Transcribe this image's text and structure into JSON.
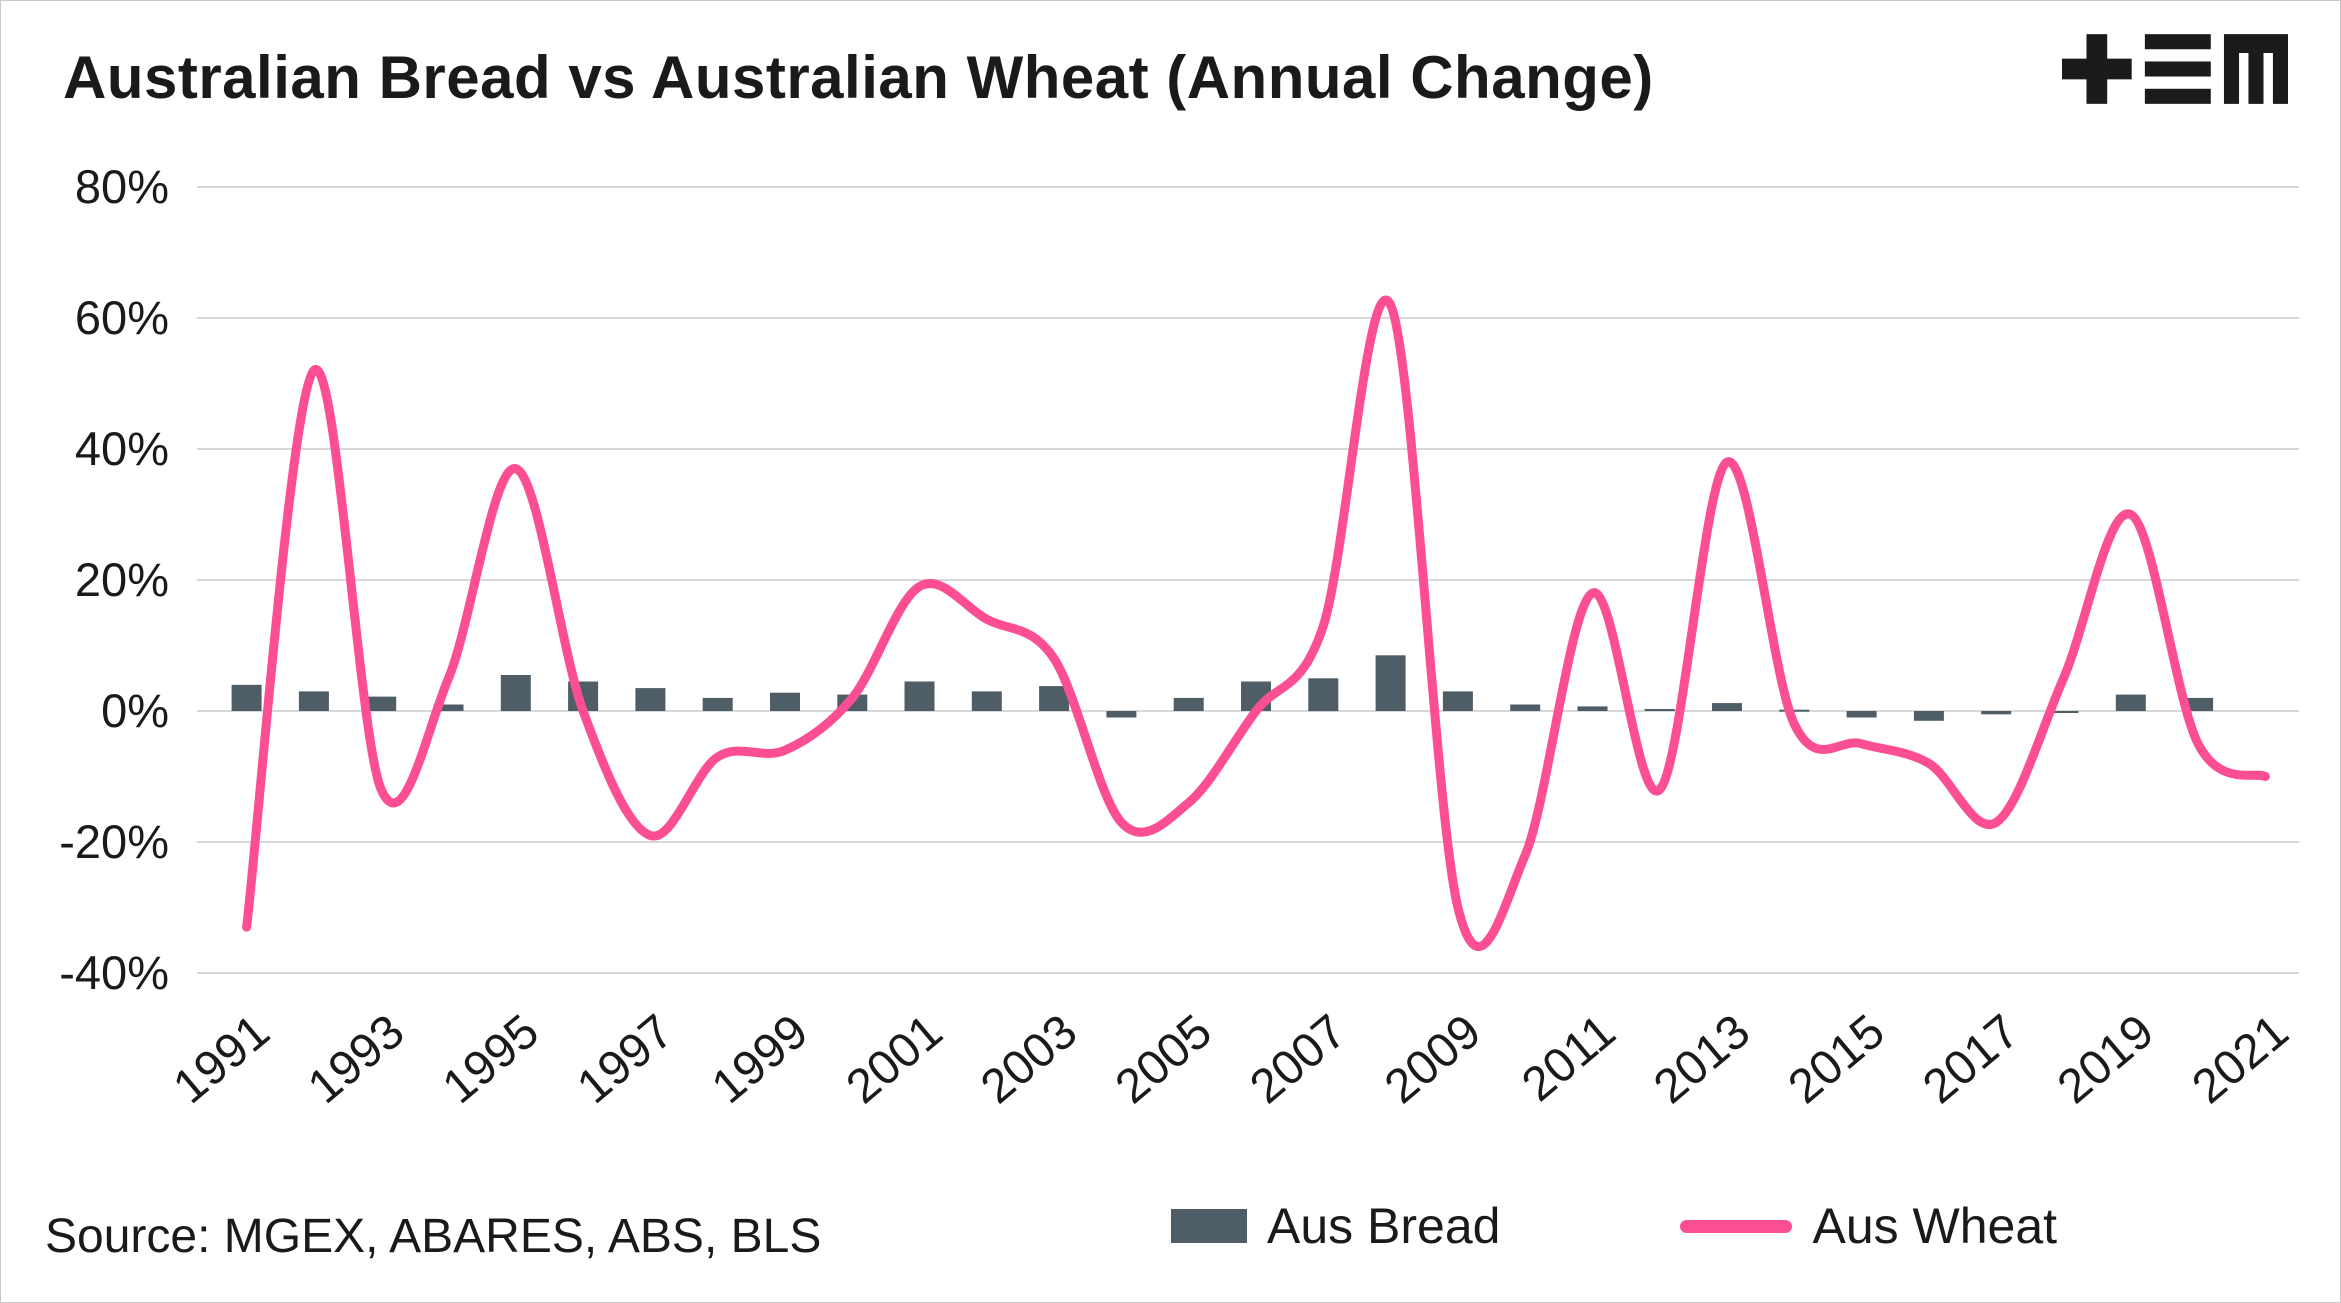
{
  "header": {
    "title": "Australian Bread vs Australian Wheat (Annual Change)",
    "logo_name": "TEM logo"
  },
  "footer": {
    "source": "Source: MGEX, ABARES, ABS, BLS"
  },
  "legend": {
    "bread_label": "Aus Bread",
    "wheat_label": "Aus Wheat"
  },
  "colors": {
    "bread": "#4e5d66",
    "wheat": "#fc4f93",
    "grid": "#d8d8d8",
    "axis_text": "#1a1a1a",
    "logo": "#1b1b1b"
  },
  "chart_data": {
    "type": "bar+line",
    "title": "Australian Bread vs Australian Wheat (Annual Change)",
    "x": [
      1991,
      1992,
      1993,
      1994,
      1995,
      1996,
      1997,
      1998,
      1999,
      2000,
      2001,
      2002,
      2003,
      2004,
      2005,
      2006,
      2007,
      2008,
      2009,
      2010,
      2011,
      2012,
      2013,
      2014,
      2015,
      2016,
      2017,
      2018,
      2019,
      2020,
      2021
    ],
    "series": [
      {
        "name": "Aus Bread",
        "type": "bar",
        "values": [
          4,
          3,
          2.2,
          1,
          5.5,
          4.5,
          3.5,
          2,
          2.8,
          2.5,
          4.5,
          3,
          3.8,
          -1,
          2,
          4.5,
          5,
          8.5,
          3,
          1,
          0.7,
          0.3,
          1.2,
          0.2,
          -1,
          -1.5,
          -0.5,
          -0.3,
          2.5,
          2,
          0
        ]
      },
      {
        "name": "Aus Wheat",
        "type": "line",
        "values": [
          -33,
          52,
          -12,
          5,
          37,
          0,
          -19,
          -7,
          -6,
          2,
          19,
          14,
          8,
          -17,
          -14,
          0,
          13,
          62,
          -30,
          -22,
          18,
          -12,
          38,
          -2,
          -5,
          -8,
          -17,
          5,
          30,
          -5,
          -10
        ]
      }
    ],
    "xlabel": "",
    "ylabel": "",
    "ylim": [
      -40,
      80
    ],
    "yticks": [
      80,
      60,
      40,
      20,
      0,
      -20,
      -40
    ],
    "ytick_format": "percent",
    "xticks": [
      1991,
      1993,
      1995,
      1997,
      1999,
      2001,
      2003,
      2005,
      2007,
      2009,
      2011,
      2013,
      2015,
      2017,
      2019,
      2021
    ],
    "grid": true,
    "legend_position": "bottom"
  }
}
